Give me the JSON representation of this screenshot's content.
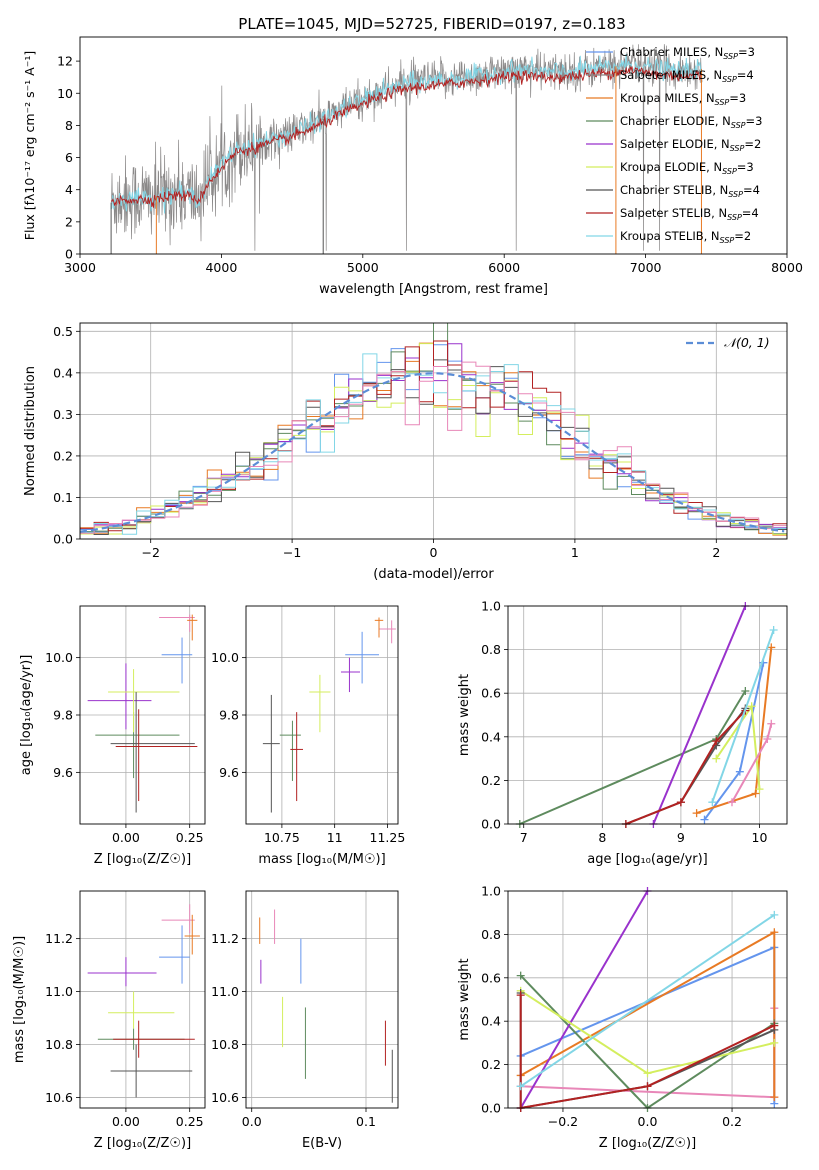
{
  "figure": {
    "title": "PLATE=1045, MJD=52725, FIBERID=0197, z=0.183"
  },
  "model_colors": [
    "#6495ED",
    "#8B8989",
    "#E87A24",
    "#5E8B5E",
    "#9932CC",
    "#D4EE5E",
    "#555555",
    "#B22222",
    "#82D6E6"
  ],
  "chart_data": [
    {
      "id": "spectrum",
      "type": "line",
      "title": "PLATE=1045, MJD=52725, FIBERID=0197, z=0.183",
      "xlabel": "wavelength [Angstrom, rest frame]",
      "ylabel": "Flux [f_λ 10^-17 erg cm^-2 s^-1 A^-1]",
      "xlim": [
        3000,
        8000
      ],
      "ylim": [
        0,
        13.5
      ],
      "xticks": [
        3000,
        4000,
        5000,
        6000,
        7000,
        8000
      ],
      "yticks": [
        0,
        2,
        4,
        6,
        8,
        10,
        12
      ],
      "grid": false,
      "legend_position": "right",
      "series": [
        {
          "name": "Chabrier MILES, N_SSP=3",
          "color": "#6495ED"
        },
        {
          "name": "Salpeter MILES, N_SSP=4",
          "color": "#8B8989"
        },
        {
          "name": "Kroupa MILES, N_SSP=3",
          "color": "#E87A24"
        },
        {
          "name": "Chabrier ELODIE, N_SSP=3",
          "color": "#5E8B5E"
        },
        {
          "name": "Salpeter ELODIE, N_SSP=2",
          "color": "#9932CC"
        },
        {
          "name": "Kroupa ELODIE, N_SSP=3",
          "color": "#D4EE5E"
        },
        {
          "name": "Chabrier STELIB, N_SSP=4",
          "color": "#555555"
        },
        {
          "name": "Salpeter STELIB, N_SSP=4",
          "color": "#B22222"
        },
        {
          "name": "Kroupa STELIB, N_SSP=2",
          "color": "#82D6E6"
        }
      ],
      "continuum": {
        "x": [
          3220,
          3300,
          3500,
          3700,
          3850,
          3900,
          4000,
          4100,
          4300,
          4500,
          4700,
          4900,
          5100,
          5300,
          5500,
          5700,
          5900,
          6100,
          6300,
          6500,
          6700,
          6900,
          7100,
          7300,
          7400
        ],
        "y": [
          3.2,
          3.5,
          3.5,
          3.8,
          3.5,
          4.5,
          5.5,
          6.5,
          7.0,
          7.5,
          8.3,
          9.2,
          10.0,
          10.6,
          10.8,
          11.0,
          11.2,
          11.5,
          11.3,
          11.4,
          11.6,
          11.8,
          11.5,
          11.4,
          11.5
        ]
      }
    },
    {
      "id": "residuals",
      "type": "line",
      "xlabel": "(data-model)/error",
      "ylabel": "Normed distribution",
      "xlim": [
        -2.5,
        2.5
      ],
      "ylim": [
        0,
        0.52
      ],
      "xticks": [
        -2,
        -1,
        0,
        1,
        2
      ],
      "yticks": [
        0.0,
        0.1,
        0.2,
        0.3,
        0.4,
        0.5
      ],
      "grid": true,
      "legend_position": "top-right",
      "reference_curve": {
        "name": "𝒩(0, 1)",
        "mean": 0,
        "sigma": 1,
        "color": "#5B8DD6",
        "style": "dashed"
      }
    },
    {
      "id": "age_vs_Z",
      "type": "scatter",
      "xlabel": "Z [log10(Z/Z⊙)]",
      "ylabel": "age [log10(age/yr)]",
      "xlim": [
        -0.18,
        0.31
      ],
      "ylim": [
        9.42,
        10.18
      ],
      "xticks": [
        0.0,
        0.25
      ],
      "yticks": [
        9.6,
        9.8,
        10.0
      ],
      "grid": true,
      "points": [
        {
          "model": "Chabrier MILES",
          "color": "#6495ED",
          "x": 0.22,
          "y": 10.01,
          "xerr": [
            0.08,
            0.04
          ],
          "yerr": [
            0.1,
            0.06
          ]
        },
        {
          "model": "Salpeter MILES",
          "color": "#E887B8",
          "x": 0.25,
          "y": 10.14,
          "xerr": [
            0.12,
            0.02
          ],
          "yerr": [
            0.05,
            0.01
          ]
        },
        {
          "model": "Kroupa MILES",
          "color": "#E87A24",
          "x": 0.26,
          "y": 10.13,
          "xerr": [
            0.02,
            0.02
          ],
          "yerr": [
            0.07,
            0.02
          ]
        },
        {
          "model": "Chabrier ELODIE",
          "color": "#5E8B5E",
          "x": 0.03,
          "y": 9.73,
          "xerr": [
            0.15,
            0.18
          ],
          "yerr": [
            0.15,
            0.08
          ]
        },
        {
          "model": "Salpeter ELODIE",
          "color": "#9932CC",
          "x": 0.0,
          "y": 9.85,
          "xerr": [
            0.15,
            0.1
          ],
          "yerr": [
            0.1,
            0.13
          ]
        },
        {
          "model": "Kroupa ELODIE",
          "color": "#D4EE5E",
          "x": 0.03,
          "y": 9.88,
          "xerr": [
            0.1,
            0.18
          ],
          "yerr": [
            0.14,
            0.08
          ]
        },
        {
          "model": "Chabrier STELIB",
          "color": "#555555",
          "x": 0.04,
          "y": 9.7,
          "xerr": [
            0.1,
            0.23
          ],
          "yerr": [
            0.24,
            0.18
          ]
        },
        {
          "model": "Salpeter STELIB",
          "color": "#B22222",
          "x": 0.05,
          "y": 9.69,
          "xerr": [
            0.09,
            0.23
          ],
          "yerr": [
            0.19,
            0.13
          ]
        }
      ]
    },
    {
      "id": "age_vs_mass",
      "type": "scatter",
      "xlabel": "mass [log10(M/M⊙)]",
      "ylabel": "",
      "xlim": [
        10.58,
        11.3
      ],
      "ylim": [
        9.42,
        10.18
      ],
      "xticks": [
        10.75,
        11.0,
        11.25
      ],
      "yticks": [
        9.6,
        9.8,
        10.0
      ],
      "grid": true,
      "points": [
        {
          "model": "Chabrier MILES",
          "color": "#6495ED",
          "x": 11.13,
          "y": 10.01,
          "xerr": [
            0.08,
            0.08
          ],
          "yerr": [
            0.1,
            0.08
          ]
        },
        {
          "model": "Salpeter MILES",
          "color": "#E887B8",
          "x": 11.27,
          "y": 10.1,
          "xerr": [
            0.06,
            0.02
          ],
          "yerr": [
            0.05,
            0.03
          ]
        },
        {
          "model": "Kroupa MILES",
          "color": "#E87A24",
          "x": 11.21,
          "y": 10.13,
          "xerr": [
            0.02,
            0.02
          ],
          "yerr": [
            0.06,
            0.01
          ]
        },
        {
          "model": "Chabrier ELODIE",
          "color": "#5E8B5E",
          "x": 10.8,
          "y": 9.73,
          "xerr": [
            0.06,
            0.04
          ],
          "yerr": [
            0.16,
            0.05
          ]
        },
        {
          "model": "Salpeter ELODIE",
          "color": "#9932CC",
          "x": 11.07,
          "y": 9.95,
          "xerr": [
            0.04,
            0.05
          ],
          "yerr": [
            0.07,
            0.05
          ]
        },
        {
          "model": "Kroupa ELODIE",
          "color": "#D4EE5E",
          "x": 10.93,
          "y": 9.88,
          "xerr": [
            0.05,
            0.05
          ],
          "yerr": [
            0.14,
            0.06
          ]
        },
        {
          "model": "Chabrier STELIB",
          "color": "#555555",
          "x": 10.7,
          "y": 9.7,
          "xerr": [
            0.04,
            0.04
          ],
          "yerr": [
            0.24,
            0.17
          ]
        },
        {
          "model": "Salpeter STELIB",
          "color": "#B22222",
          "x": 10.82,
          "y": 9.68,
          "xerr": [
            0.03,
            0.03
          ],
          "yerr": [
            0.18,
            0.13
          ]
        }
      ]
    },
    {
      "id": "weight_vs_age",
      "type": "line",
      "xlabel": "age [log10(age/yr)]",
      "ylabel": "mass weight",
      "xlim": [
        6.8,
        10.35
      ],
      "ylim": [
        0,
        1.0
      ],
      "xticks": [
        7,
        8,
        9,
        10
      ],
      "yticks": [
        0.0,
        0.2,
        0.4,
        0.6,
        0.8,
        1.0
      ],
      "grid": true,
      "series": [
        {
          "model": "Chabrier MILES",
          "color": "#6495ED",
          "x": [
            9.3,
            9.75,
            10.05
          ],
          "y": [
            0.02,
            0.24,
            0.74
          ]
        },
        {
          "model": "Kroupa MILES",
          "color": "#E87A24",
          "x": [
            9.2,
            9.95,
            10.15
          ],
          "y": [
            0.05,
            0.14,
            0.81
          ]
        },
        {
          "model": "Chabrier ELODIE",
          "color": "#5E8B5E",
          "x": [
            6.95,
            9.45,
            9.82
          ],
          "y": [
            0.0,
            0.39,
            0.61
          ]
        },
        {
          "model": "Salpeter ELODIE",
          "color": "#9932CC",
          "x": [
            8.65,
            9.82
          ],
          "y": [
            0.0,
            1.0
          ]
        },
        {
          "model": "Kroupa ELODIE",
          "color": "#D4EE5E",
          "x": [
            9.45,
            9.9,
            10.0
          ],
          "y": [
            0.3,
            0.54,
            0.16
          ]
        },
        {
          "model": "Chabrier STELIB",
          "color": "#555555",
          "x": [
            8.3,
            9.0,
            9.45,
            9.82
          ],
          "y": [
            0.0,
            0.1,
            0.36,
            0.53
          ]
        },
        {
          "model": "Salpeter STELIB",
          "color": "#B22222",
          "x": [
            8.3,
            9.0,
            9.45,
            9.82
          ],
          "y": [
            0.0,
            0.1,
            0.38,
            0.52
          ]
        },
        {
          "model": "Kroupa STELIB",
          "color": "#82D6E6",
          "x": [
            9.4,
            10.18
          ],
          "y": [
            0.1,
            0.89
          ]
        },
        {
          "model": "Salpeter MILES",
          "color": "#E887B8",
          "x": [
            9.65,
            10.1,
            10.15
          ],
          "y": [
            0.1,
            0.39,
            0.46
          ]
        }
      ]
    },
    {
      "id": "mass_vs_Z",
      "type": "scatter",
      "xlabel": "Z [log10(Z/Z⊙)]",
      "ylabel": "mass [log10(M/M⊙)]",
      "xlim": [
        -0.18,
        0.31
      ],
      "ylim": [
        10.56,
        11.38
      ],
      "xticks": [
        0.0,
        0.25
      ],
      "yticks": [
        10.6,
        10.8,
        11.0,
        11.2
      ],
      "grid": true,
      "points": [
        {
          "model": "Chabrier MILES",
          "color": "#6495ED",
          "x": 0.22,
          "y": 11.13,
          "xerr": [
            0.09,
            0.03
          ],
          "yerr": [
            0.1,
            0.12
          ]
        },
        {
          "model": "Salpeter MILES",
          "color": "#E887B8",
          "x": 0.25,
          "y": 11.27,
          "xerr": [
            0.11,
            0.02
          ],
          "yerr": [
            0.05,
            0.06
          ]
        },
        {
          "model": "Kroupa MILES",
          "color": "#E87A24",
          "x": 0.26,
          "y": 11.21,
          "xerr": [
            0.03,
            0.03
          ],
          "yerr": [
            0.07,
            0.08
          ]
        },
        {
          "model": "Chabrier ELODIE",
          "color": "#5E8B5E",
          "x": 0.03,
          "y": 10.82,
          "xerr": [
            0.14,
            0.2
          ],
          "yerr": [
            0.04,
            0.04
          ]
        },
        {
          "model": "Salpeter ELODIE",
          "color": "#9932CC",
          "x": 0.0,
          "y": 11.07,
          "xerr": [
            0.15,
            0.12
          ],
          "yerr": [
            0.05,
            0.06
          ]
        },
        {
          "model": "Kroupa ELODIE",
          "color": "#D4EE5E",
          "x": 0.03,
          "y": 10.92,
          "xerr": [
            0.1,
            0.16
          ],
          "yerr": [
            0.06,
            0.08
          ]
        },
        {
          "model": "Chabrier STELIB",
          "color": "#555555",
          "x": 0.04,
          "y": 10.7,
          "xerr": [
            0.1,
            0.22
          ],
          "yerr": [
            0.1,
            0.1
          ]
        },
        {
          "model": "Salpeter STELIB",
          "color": "#B22222",
          "x": 0.05,
          "y": 10.82,
          "xerr": [
            0.1,
            0.22
          ],
          "yerr": [
            0.07,
            0.07
          ]
        }
      ]
    },
    {
      "id": "mass_vs_ebv",
      "type": "scatter",
      "xlabel": "E(B-V)",
      "ylabel": "",
      "xlim": [
        -0.005,
        0.128
      ],
      "ylim": [
        10.56,
        11.38
      ],
      "xticks": [
        0.0,
        0.1
      ],
      "yticks": [
        10.6,
        10.8,
        11.0,
        11.2
      ],
      "grid": true,
      "points": [
        {
          "model": "Chabrier MILES",
          "color": "#6495ED",
          "x": 0.043,
          "y": 11.13,
          "yerr": [
            0.1,
            0.07
          ]
        },
        {
          "model": "Salpeter MILES",
          "color": "#E887B8",
          "x": 0.02,
          "y": 11.25,
          "yerr": [
            0.07,
            0.06
          ]
        },
        {
          "model": "Kroupa MILES",
          "color": "#E87A24",
          "x": 0.007,
          "y": 11.21,
          "yerr": [
            0.03,
            0.07
          ]
        },
        {
          "model": "Chabrier ELODIE",
          "color": "#5E8B5E",
          "x": 0.047,
          "y": 10.8,
          "yerr": [
            0.13,
            0.14
          ]
        },
        {
          "model": "Salpeter ELODIE",
          "color": "#9932CC",
          "x": 0.008,
          "y": 11.07,
          "yerr": [
            0.04,
            0.05
          ]
        },
        {
          "model": "Kroupa ELODIE",
          "color": "#D4EE5E",
          "x": 0.027,
          "y": 10.92,
          "yerr": [
            0.13,
            0.06
          ]
        },
        {
          "model": "Chabrier STELIB",
          "color": "#555555",
          "x": 0.123,
          "y": 10.7,
          "yerr": [
            0.12,
            0.08
          ]
        },
        {
          "model": "Salpeter STELIB",
          "color": "#B22222",
          "x": 0.117,
          "y": 10.8,
          "yerr": [
            0.08,
            0.09
          ]
        }
      ]
    },
    {
      "id": "weight_vs_Z",
      "type": "line",
      "xlabel": "Z [log10(Z/Z⊙)]",
      "ylabel": "mass weight",
      "xlim": [
        -0.33,
        0.33
      ],
      "ylim": [
        0,
        1.0
      ],
      "xticks": [
        -0.2,
        0.0,
        0.2
      ],
      "yticks": [
        0.0,
        0.2,
        0.4,
        0.6,
        0.8,
        1.0
      ],
      "grid": true,
      "series": [
        {
          "model": "Chabrier MILES",
          "color": "#6495ED",
          "x": [
            -0.3,
            0.3,
            0.3
          ],
          "y": [
            0.24,
            0.74,
            0.02
          ]
        },
        {
          "model": "Salpeter MILES",
          "color": "#E887B8",
          "x": [
            -0.3,
            0.3,
            0.3
          ],
          "y": [
            0.1,
            0.05,
            0.46
          ]
        },
        {
          "model": "Kroupa MILES",
          "color": "#E87A24",
          "x": [
            -0.3,
            0.3,
            0.3
          ],
          "y": [
            0.15,
            0.81,
            0.05
          ]
        },
        {
          "model": "Chabrier ELODIE",
          "color": "#5E8B5E",
          "x": [
            -0.3,
            0.0,
            0.3
          ],
          "y": [
            0.61,
            0.0,
            0.39
          ]
        },
        {
          "model": "Salpeter ELODIE",
          "color": "#9932CC",
          "x": [
            -0.3,
            0.0
          ],
          "y": [
            0.0,
            1.0
          ]
        },
        {
          "model": "Kroupa ELODIE",
          "color": "#D4EE5E",
          "x": [
            -0.3,
            0.0,
            0.3
          ],
          "y": [
            0.54,
            0.16,
            0.3
          ]
        },
        {
          "model": "Chabrier STELIB",
          "color": "#555555",
          "x": [
            -0.3,
            -0.3,
            0.0,
            0.3
          ],
          "y": [
            0.53,
            0.0,
            0.1,
            0.36
          ]
        },
        {
          "model": "Salpeter STELIB",
          "color": "#B22222",
          "x": [
            -0.3,
            -0.3,
            0.0,
            0.3
          ],
          "y": [
            0.52,
            0.0,
            0.1,
            0.38
          ]
        },
        {
          "model": "Kroupa STELIB",
          "color": "#82D6E6",
          "x": [
            -0.3,
            0.3
          ],
          "y": [
            0.1,
            0.89
          ]
        }
      ]
    }
  ]
}
